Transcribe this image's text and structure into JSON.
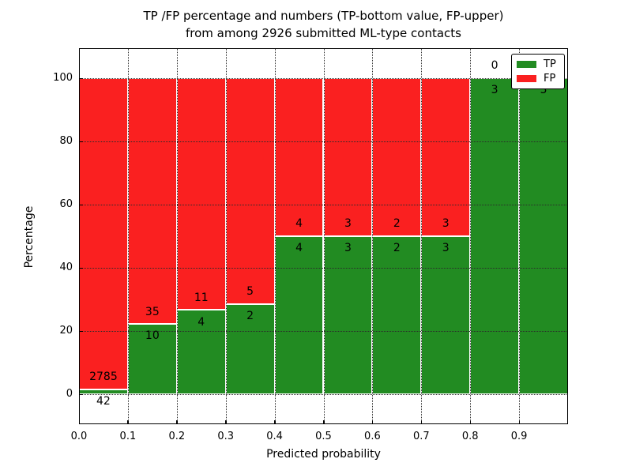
{
  "chart_data": {
    "type": "bar",
    "stacking": "percent",
    "title_line1": "TP /FP percentage and numbers (TP-bottom value, FP-upper)",
    "title_line2": "from among 2926 submitted ML-type contacts",
    "xlabel": "Predicted probability",
    "ylabel": "Percentage",
    "total_contacts": 2926,
    "bins": [
      {
        "range": "0.0-0.1",
        "tp": 42,
        "fp": 2785,
        "tp_pct": 1.49
      },
      {
        "range": "0.1-0.2",
        "tp": 10,
        "fp": 35,
        "tp_pct": 22.22
      },
      {
        "range": "0.2-0.3",
        "tp": 4,
        "fp": 11,
        "tp_pct": 26.67
      },
      {
        "range": "0.3-0.4",
        "tp": 2,
        "fp": 5,
        "tp_pct": 28.57
      },
      {
        "range": "0.4-0.5",
        "tp": 4,
        "fp": 4,
        "tp_pct": 50.0
      },
      {
        "range": "0.5-0.6",
        "tp": 3,
        "fp": 3,
        "tp_pct": 50.0
      },
      {
        "range": "0.6-0.7",
        "tp": 2,
        "fp": 2,
        "tp_pct": 50.0
      },
      {
        "range": "0.7-0.8",
        "tp": 3,
        "fp": 3,
        "tp_pct": 50.0
      },
      {
        "range": "0.8-0.9",
        "tp": 3,
        "fp": 0,
        "tp_pct": 100.0
      },
      {
        "range": "0.9-1.0",
        "tp": 5,
        "fp": 0,
        "tp_pct": 100.0
      }
    ],
    "xticks": [
      "0.0",
      "0.1",
      "0.2",
      "0.3",
      "0.4",
      "0.5",
      "0.6",
      "0.7",
      "0.8",
      "0.9"
    ],
    "yticks": [
      0,
      20,
      40,
      60,
      80,
      100
    ],
    "xlim": [
      0.0,
      1.0
    ],
    "ylim": [
      -9.5,
      109.5
    ],
    "grid": true,
    "legend": {
      "position": "upper right",
      "entries": [
        {
          "label": "TP",
          "color": "#228b22"
        },
        {
          "label": "FP",
          "color": "#fa2020"
        }
      ]
    },
    "colors": {
      "tp": "#228b22",
      "fp": "#fa2020",
      "bar_edge": "#ffffff",
      "grid": "#2a2a2a",
      "text": "#000000"
    }
  }
}
